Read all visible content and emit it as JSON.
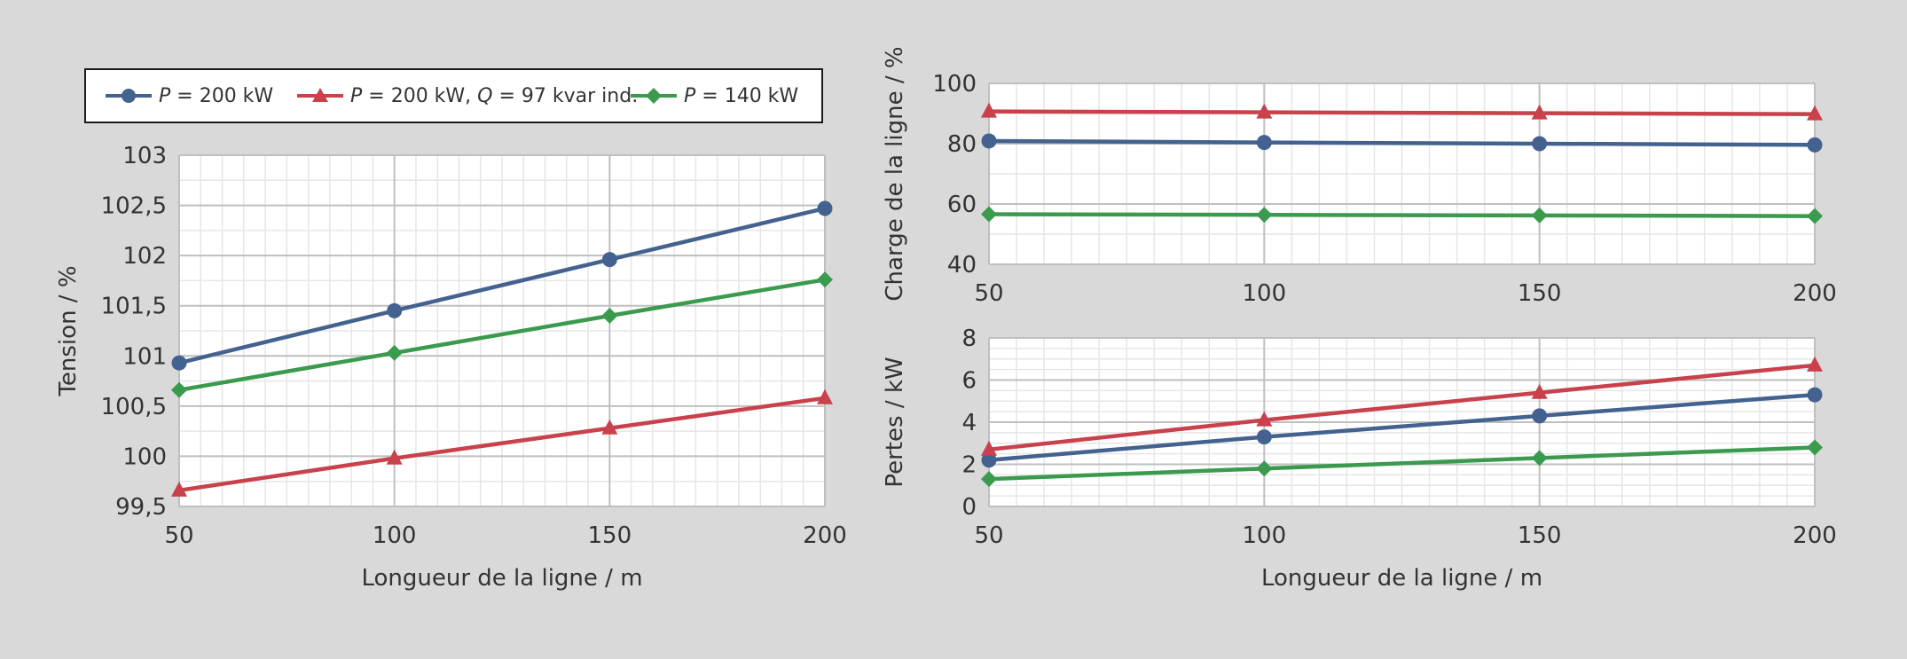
{
  "colors": {
    "background": "#d9d9d9",
    "plot_background": "#ffffff",
    "major_grid": "#bfbfbf",
    "minor_grid": "#e6e6e6",
    "series": [
      "#44628f",
      "#c8414b",
      "#3a9a4e"
    ]
  },
  "legend": {
    "items": [
      {
        "var": "P",
        "rest": " = 200 kW",
        "color": "#44628f",
        "marker": "circle"
      },
      {
        "var": "P",
        "rest": " = 200 kW, ",
        "var2": "Q",
        "rest2": " = 97 kvar ind.",
        "color": "#c8414b",
        "marker": "triangle"
      },
      {
        "var": "P",
        "rest": " = 140 kW",
        "color": "#3a9a4e",
        "marker": "diamond"
      }
    ]
  },
  "chart_data": [
    {
      "type": "line",
      "xlabel": "Longueur de la ligne / m",
      "ylabel": "Tension / %",
      "x": [
        50,
        100,
        150,
        200
      ],
      "xlim": [
        50,
        200
      ],
      "ylim": [
        99.5,
        103
      ],
      "xticks": [
        "50",
        "100",
        "150",
        "200"
      ],
      "yticks": [
        "99,5",
        "100",
        "100,5",
        "101",
        "101,5",
        "102",
        "102,5",
        "103"
      ],
      "grid": true,
      "series": [
        {
          "values": [
            100.93,
            101.45,
            101.96,
            102.47
          ],
          "color": "#44628f",
          "marker": "circle"
        },
        {
          "values": [
            99.66,
            99.98,
            100.28,
            100.58
          ],
          "color": "#c8414b",
          "marker": "triangle"
        },
        {
          "values": [
            100.66,
            101.03,
            101.4,
            101.76
          ],
          "color": "#3a9a4e",
          "marker": "diamond"
        }
      ]
    },
    {
      "type": "line",
      "xlabel": "",
      "ylabel": "Charge de la ligne / %",
      "x": [
        50,
        100,
        150,
        200
      ],
      "xlim": [
        50,
        200
      ],
      "ylim": [
        40,
        100
      ],
      "xticks": [
        "50",
        "100",
        "150",
        "200"
      ],
      "yticks": [
        "40",
        "60",
        "80",
        "100"
      ],
      "grid": true,
      "series": [
        {
          "values": [
            80.9,
            80.4,
            80.0,
            79.6
          ],
          "color": "#44628f",
          "marker": "circle"
        },
        {
          "values": [
            90.7,
            90.4,
            90.1,
            89.8
          ],
          "color": "#c8414b",
          "marker": "triangle"
        },
        {
          "values": [
            56.6,
            56.4,
            56.2,
            56.0
          ],
          "color": "#3a9a4e",
          "marker": "diamond"
        }
      ]
    },
    {
      "type": "line",
      "xlabel": "Longueur de la ligne / m",
      "ylabel": "Pertes / kW",
      "x": [
        50,
        100,
        150,
        200
      ],
      "xlim": [
        50,
        200
      ],
      "ylim": [
        0,
        8
      ],
      "xticks": [
        "50",
        "100",
        "150",
        "200"
      ],
      "yticks": [
        "0",
        "2",
        "4",
        "6",
        "8"
      ],
      "grid": true,
      "series": [
        {
          "values": [
            2.2,
            3.3,
            4.3,
            5.3
          ],
          "color": "#44628f",
          "marker": "circle"
        },
        {
          "values": [
            2.7,
            4.1,
            5.4,
            6.7
          ],
          "color": "#c8414b",
          "marker": "triangle"
        },
        {
          "values": [
            1.3,
            1.8,
            2.3,
            2.8
          ],
          "color": "#3a9a4e",
          "marker": "diamond"
        }
      ]
    }
  ]
}
